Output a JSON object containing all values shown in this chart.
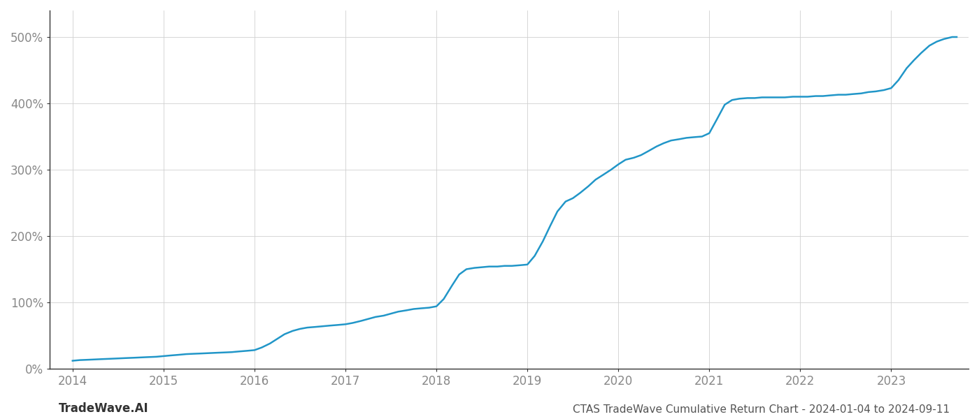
{
  "title": "CTAS TradeWave Cumulative Return Chart - 2024-01-04 to 2024-09-11",
  "watermark": "TradeWave.AI",
  "line_color": "#2196c8",
  "line_width": 1.8,
  "background_color": "#ffffff",
  "grid_color": "#d0d0d0",
  "x_values": [
    2014.0,
    2014.08,
    2014.17,
    2014.25,
    2014.33,
    2014.42,
    2014.5,
    2014.58,
    2014.67,
    2014.75,
    2014.83,
    2014.92,
    2015.0,
    2015.08,
    2015.17,
    2015.25,
    2015.33,
    2015.42,
    2015.5,
    2015.58,
    2015.67,
    2015.75,
    2015.83,
    2015.92,
    2016.0,
    2016.08,
    2016.17,
    2016.25,
    2016.33,
    2016.42,
    2016.5,
    2016.58,
    2016.67,
    2016.75,
    2016.83,
    2016.92,
    2017.0,
    2017.08,
    2017.17,
    2017.25,
    2017.33,
    2017.42,
    2017.5,
    2017.58,
    2017.67,
    2017.75,
    2017.83,
    2017.92,
    2018.0,
    2018.08,
    2018.17,
    2018.25,
    2018.33,
    2018.42,
    2018.5,
    2018.58,
    2018.67,
    2018.75,
    2018.83,
    2018.92,
    2019.0,
    2019.08,
    2019.17,
    2019.25,
    2019.33,
    2019.42,
    2019.5,
    2019.58,
    2019.67,
    2019.75,
    2019.83,
    2019.92,
    2020.0,
    2020.08,
    2020.17,
    2020.25,
    2020.33,
    2020.42,
    2020.5,
    2020.58,
    2020.67,
    2020.75,
    2020.83,
    2020.92,
    2021.0,
    2021.08,
    2021.17,
    2021.25,
    2021.33,
    2021.42,
    2021.5,
    2021.58,
    2021.67,
    2021.75,
    2021.83,
    2021.92,
    2022.0,
    2022.08,
    2022.17,
    2022.25,
    2022.33,
    2022.42,
    2022.5,
    2022.58,
    2022.67,
    2022.75,
    2022.83,
    2022.92,
    2023.0,
    2023.08,
    2023.17,
    2023.25,
    2023.33,
    2023.42,
    2023.5,
    2023.58,
    2023.67,
    2023.72
  ],
  "y_values": [
    12,
    13,
    13.5,
    14,
    14.5,
    15,
    15.5,
    16,
    16.5,
    17,
    17.5,
    18,
    19,
    20,
    21,
    22,
    22.5,
    23,
    23.5,
    24,
    24.5,
    25,
    26,
    27,
    28,
    32,
    38,
    45,
    52,
    57,
    60,
    62,
    63,
    64,
    65,
    66,
    67,
    69,
    72,
    75,
    78,
    80,
    83,
    86,
    88,
    90,
    91,
    92,
    94,
    105,
    125,
    142,
    150,
    152,
    153,
    154,
    154,
    155,
    155,
    156,
    157,
    170,
    192,
    215,
    237,
    252,
    257,
    265,
    275,
    285,
    292,
    300,
    308,
    315,
    318,
    322,
    328,
    335,
    340,
    344,
    346,
    348,
    349,
    350,
    355,
    375,
    398,
    405,
    407,
    408,
    408,
    409,
    409,
    409,
    409,
    410,
    410,
    410,
    411,
    411,
    412,
    413,
    413,
    414,
    415,
    417,
    418,
    420,
    423,
    435,
    453,
    465,
    476,
    487,
    493,
    497,
    500,
    500
  ],
  "ylim": [
    0,
    540
  ],
  "xlim": [
    2013.75,
    2023.85
  ],
  "yticks": [
    0,
    100,
    200,
    300,
    400,
    500
  ],
  "xticks": [
    2014,
    2015,
    2016,
    2017,
    2018,
    2019,
    2020,
    2021,
    2022,
    2023
  ],
  "title_fontsize": 11,
  "watermark_fontsize": 12,
  "tick_fontsize": 12,
  "tick_color": "#888888",
  "spine_color": "#333333"
}
